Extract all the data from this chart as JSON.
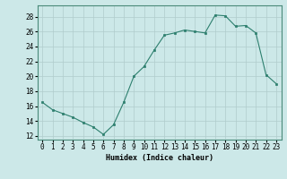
{
  "x": [
    0,
    1,
    2,
    3,
    4,
    5,
    6,
    7,
    8,
    9,
    10,
    11,
    12,
    13,
    14,
    15,
    16,
    17,
    18,
    19,
    20,
    21,
    22,
    23
  ],
  "y": [
    16.5,
    15.5,
    15.0,
    14.5,
    13.8,
    13.2,
    12.2,
    13.5,
    16.5,
    20.0,
    21.3,
    23.5,
    25.5,
    25.8,
    26.2,
    26.0,
    25.8,
    28.2,
    28.1,
    26.7,
    26.8,
    25.8,
    20.2,
    19.0
  ],
  "xlabel": "Humidex (Indice chaleur)",
  "xlim": [
    -0.5,
    23.5
  ],
  "ylim": [
    11.5,
    29.5
  ],
  "yticks": [
    12,
    14,
    16,
    18,
    20,
    22,
    24,
    26,
    28
  ],
  "xticks": [
    0,
    1,
    2,
    3,
    4,
    5,
    6,
    7,
    8,
    9,
    10,
    11,
    12,
    13,
    14,
    15,
    16,
    17,
    18,
    19,
    20,
    21,
    22,
    23
  ],
  "line_color": "#2d7f6e",
  "marker_color": "#2d7f6e",
  "bg_color": "#cce8e8",
  "grid_color": "#b0cccc",
  "label_fontsize": 6.0,
  "tick_fontsize": 5.5
}
